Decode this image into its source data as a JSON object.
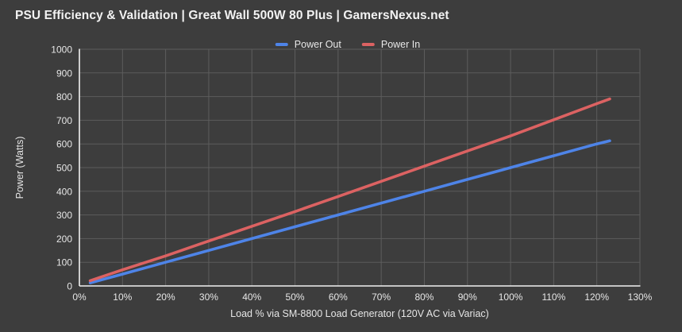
{
  "header": {
    "title": "PSU Efficiency & Validation | Great Wall 500W 80 Plus | GamersNexus.net"
  },
  "colors": {
    "background": "#3d3d3d",
    "grid": "#5d5d5d",
    "axis": "#f2f2f2",
    "tick_text": "#e6e6e6",
    "title_text": "#f2f2f2",
    "power_out": "#4e84e8",
    "power_in": "#dc6262"
  },
  "chart_data": {
    "type": "line",
    "title": "PSU Efficiency & Validation | Great Wall 500W 80 Plus | GamersNexus.net",
    "xlabel": "Load % via SM-8800 Load Generator (120V AC via Variac)",
    "ylabel": "Power (Watts)",
    "xlim": [
      0,
      130
    ],
    "ylim": [
      0,
      1000
    ],
    "grid": true,
    "legend_position": "top-center",
    "x_tick_values": [
      0,
      10,
      20,
      30,
      40,
      50,
      60,
      70,
      80,
      90,
      100,
      110,
      120,
      130
    ],
    "x_tick_labels": [
      "0%",
      "10%",
      "20%",
      "30%",
      "40%",
      "50%",
      "60%",
      "70%",
      "80%",
      "90%",
      "100%",
      "110%",
      "120%",
      "130%"
    ],
    "y_tick_values": [
      0,
      100,
      200,
      300,
      400,
      500,
      600,
      700,
      800,
      900,
      1000
    ],
    "y_tick_labels": [
      "0",
      "100",
      "200",
      "300",
      "400",
      "500",
      "600",
      "700",
      "800",
      "900",
      "1000"
    ],
    "x": [
      2.5,
      10,
      20,
      30,
      40,
      50,
      60,
      70,
      80,
      90,
      100,
      110,
      120,
      123
    ],
    "series": [
      {
        "name": "Power Out",
        "color": "#4e84e8",
        "values": [
          13,
          50,
          100,
          150,
          200,
          250,
          300,
          350,
          400,
          450,
          500,
          550,
          600,
          613
        ]
      },
      {
        "name": "Power In",
        "color": "#dc6262",
        "values": [
          22,
          68,
          127,
          190,
          252,
          314,
          378,
          442,
          506,
          570,
          634,
          702,
          770,
          790
        ]
      }
    ]
  }
}
